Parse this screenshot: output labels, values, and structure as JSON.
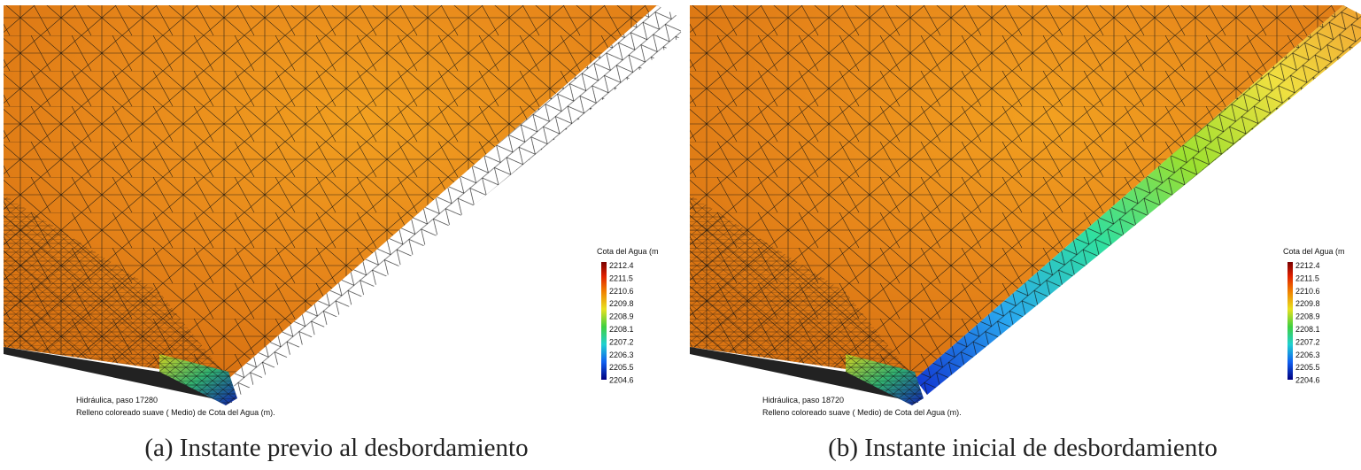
{
  "panels": [
    {
      "legend": {
        "title": "Cota del Agua (m",
        "values": [
          2212.4,
          2211.5,
          2210.6,
          2209.8,
          2208.9,
          2208.1,
          2207.2,
          2206.3,
          2205.5,
          2204.6
        ]
      },
      "footer": [
        "Hidráulica, paso 17280",
        "Relleno coloreado suave ( Medio) de Cota del Agua (m)."
      ],
      "caption": "(a) Instante previo al desbordamiento"
    },
    {
      "legend": {
        "title": "Cota del Agua (m",
        "values": [
          2212.4,
          2211.5,
          2210.6,
          2209.8,
          2208.9,
          2208.1,
          2207.2,
          2206.3,
          2205.5,
          2204.6
        ]
      },
      "footer": [
        "Hidráulica, paso 18720",
        "Relleno coloreado suave ( Medio) de Cota del Agua (m)."
      ],
      "caption": "(b) Instante inicial de desbordamiento"
    }
  ]
}
